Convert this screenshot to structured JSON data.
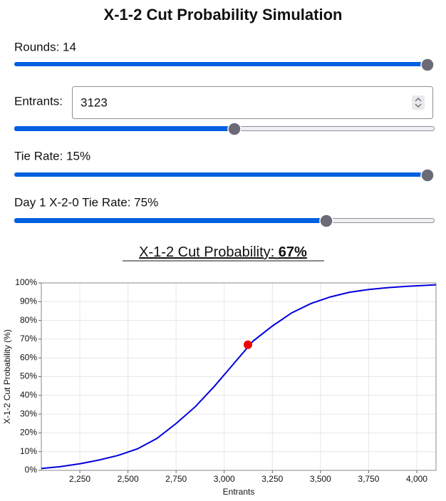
{
  "title": "X-1-2 Cut Probability Simulation",
  "controls": [
    {
      "label": "Rounds: 14"
    },
    {
      "label": "Entrants:",
      "input": "3123"
    },
    {
      "label": "Tie Rate: 15%"
    },
    {
      "label": "Day 1 X-2-0 Tie Rate: 75%"
    }
  ],
  "result": {
    "label": "X-1-2 Cut Probability:",
    "value": "67%"
  },
  "chart_data": {
    "type": "line",
    "x": [
      2050,
      2150,
      2250,
      2350,
      2450,
      2550,
      2650,
      2750,
      2850,
      2950,
      3050,
      3150,
      3250,
      3350,
      3450,
      3550,
      3650,
      3750,
      3850,
      3950,
      4050,
      4100
    ],
    "values": [
      1,
      2,
      3.5,
      5.5,
      8,
      11.5,
      17,
      25,
      34,
      45,
      57,
      69,
      77,
      84,
      89,
      92.5,
      95,
      96.5,
      97.5,
      98.2,
      98.7,
      99
    ],
    "color": "#0000dd",
    "highlight": {
      "x": 3123,
      "y": 67,
      "color": "#ee0000"
    },
    "xlabel": "Entrants",
    "ylabel": "X-1-2 Cut Probability (%)",
    "xlim": [
      2050,
      4100
    ],
    "ylim": [
      0,
      100
    ],
    "xticks": [
      {
        "value": 2250,
        "label": "2,250"
      },
      {
        "value": 2500,
        "label": "2,500"
      },
      {
        "value": 2750,
        "label": "2,750"
      },
      {
        "value": 3000,
        "label": "3,000"
      },
      {
        "value": 3250,
        "label": "3,250"
      },
      {
        "value": 3500,
        "label": "3,500"
      },
      {
        "value": 3750,
        "label": "3,750"
      },
      {
        "value": 4000,
        "label": "4,000"
      }
    ],
    "yticks": [
      {
        "value": 0,
        "label": "0%"
      },
      {
        "value": 10,
        "label": "10%"
      },
      {
        "value": 20,
        "label": "20%"
      },
      {
        "value": 30,
        "label": "30%"
      },
      {
        "value": 40,
        "label": "40%"
      },
      {
        "value": 50,
        "label": "50%"
      },
      {
        "value": 60,
        "label": "60%"
      },
      {
        "value": 70,
        "label": "70%"
      },
      {
        "value": 80,
        "label": "80%"
      },
      {
        "value": 90,
        "label": "90%"
      },
      {
        "value": 100,
        "label": "100%"
      }
    ],
    "grid": true
  }
}
